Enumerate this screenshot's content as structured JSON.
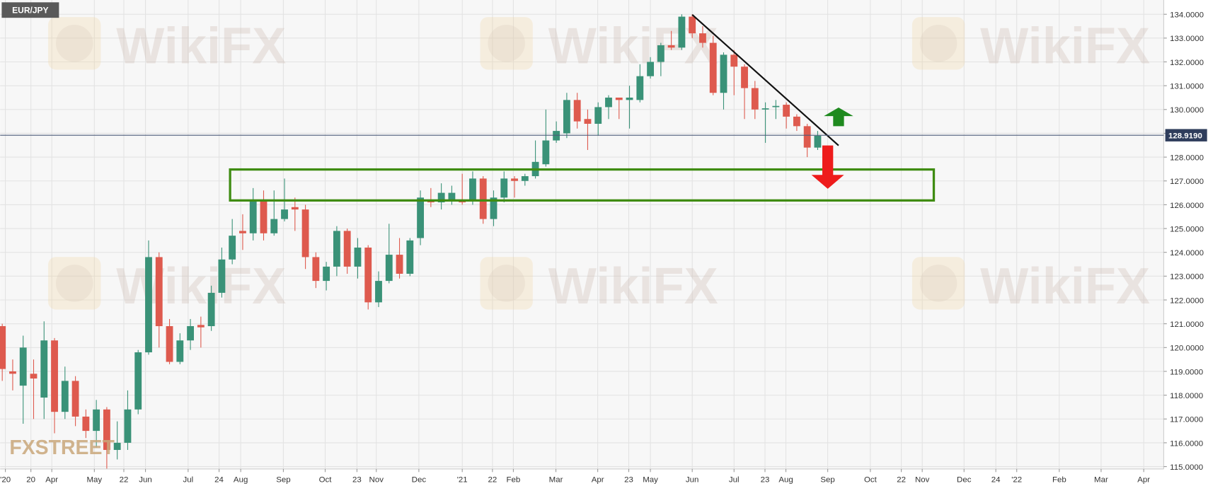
{
  "chart_data": {
    "type": "candlestick",
    "title": "EUR/JPY",
    "watermark": "WikiFX",
    "source": "FXSTREET",
    "x": [
      0,
      1,
      2,
      3,
      4,
      5,
      6,
      7,
      8,
      9,
      10,
      11,
      12,
      13,
      14,
      15,
      16,
      17,
      18,
      19,
      20,
      21,
      22,
      23,
      24,
      25,
      26,
      27,
      28,
      29,
      30,
      31,
      32,
      33,
      34,
      35,
      36,
      37,
      38,
      39,
      40,
      41,
      42,
      43,
      44,
      45,
      46,
      47,
      48,
      49,
      50,
      51,
      52,
      53,
      54,
      55,
      56,
      57,
      58,
      59,
      60,
      61,
      62,
      63,
      64,
      65,
      66,
      67,
      68,
      69,
      70,
      71,
      72,
      73,
      74,
      75,
      76,
      77,
      78
    ],
    "open": [
      120.9,
      119.0,
      118.4,
      118.9,
      117.9,
      120.3,
      117.3,
      118.6,
      117.1,
      116.5,
      117.4,
      115.7,
      116.0,
      117.4,
      119.8,
      123.8,
      120.9,
      119.4,
      120.3,
      120.95,
      120.9,
      122.3,
      123.7,
      124.9,
      124.8,
      126.2,
      124.8,
      125.4,
      125.9,
      125.8,
      123.8,
      122.8,
      123.4,
      124.9,
      123.4,
      124.2,
      121.9,
      122.8,
      123.9,
      123.1,
      124.6,
      126.2,
      126.1,
      126.2,
      126.2,
      126.2,
      127.1,
      125.4,
      126.3,
      127.1,
      127.0,
      127.2,
      127.7,
      128.7,
      129.0,
      130.4,
      129.6,
      129.4,
      130.1,
      130.5,
      130.4,
      130.4,
      131.4,
      132.0,
      132.7,
      132.6,
      133.9,
      133.2,
      132.8,
      130.7,
      132.3,
      131.8,
      130.9,
      130.0,
      130.1,
      130.2,
      129.7,
      129.3,
      128.4
    ],
    "high": [
      121.0,
      119.5,
      120.5,
      119.5,
      121.1,
      120.4,
      119.2,
      118.8,
      117.4,
      117.8,
      117.5,
      116.9,
      118.2,
      119.9,
      124.5,
      124.0,
      121.2,
      120.6,
      121.2,
      121.3,
      122.6,
      124.2,
      125.4,
      125.6,
      126.7,
      126.6,
      126.6,
      127.1,
      126.3,
      126.0,
      124.0,
      123.6,
      125.1,
      125.0,
      124.6,
      124.3,
      123.2,
      125.2,
      124.6,
      124.6,
      126.6,
      126.7,
      126.9,
      126.8,
      127.3,
      127.4,
      127.2,
      126.6,
      127.4,
      127.2,
      127.3,
      128.7,
      130.0,
      129.5,
      130.7,
      130.7,
      130.0,
      130.3,
      130.6,
      130.5,
      131.0,
      131.9,
      132.2,
      132.8,
      133.3,
      134.0,
      134.0,
      133.5,
      133.1,
      132.4,
      132.5,
      131.9,
      131.2,
      130.3,
      130.4,
      130.3,
      129.8,
      129.4,
      129.1
    ],
    "low": [
      118.6,
      118.2,
      116.8,
      117.0,
      117.0,
      116.4,
      117.0,
      116.7,
      116.2,
      115.8,
      114.9,
      115.3,
      115.7,
      117.2,
      119.7,
      120.0,
      119.3,
      119.3,
      119.9,
      120.0,
      120.7,
      122.1,
      123.5,
      124.1,
      124.5,
      124.5,
      124.7,
      125.3,
      124.9,
      123.3,
      122.5,
      122.4,
      123.0,
      123.1,
      122.9,
      121.6,
      121.7,
      122.7,
      122.9,
      123.0,
      124.3,
      125.9,
      125.8,
      126.0,
      126.0,
      126.0,
      125.2,
      125.1,
      126.1,
      126.3,
      126.8,
      127.1,
      127.6,
      128.6,
      128.8,
      129.2,
      128.3,
      128.9,
      129.6,
      129.6,
      129.2,
      130.3,
      131.3,
      131.4,
      132.5,
      132.5,
      133.0,
      132.6,
      130.6,
      130.0,
      130.6,
      129.6,
      129.6,
      128.6,
      129.6,
      129.2,
      129.1,
      128.0,
      128.3
    ],
    "close": [
      119.1,
      118.9,
      120.0,
      118.7,
      120.3,
      117.3,
      118.6,
      117.1,
      116.5,
      117.4,
      115.7,
      116.0,
      117.4,
      119.8,
      123.8,
      120.9,
      119.4,
      120.3,
      120.9,
      120.85,
      122.3,
      123.7,
      124.7,
      124.8,
      126.2,
      124.8,
      125.4,
      125.8,
      125.8,
      123.8,
      122.8,
      123.4,
      124.9,
      123.4,
      124.2,
      121.9,
      122.8,
      123.9,
      123.1,
      124.5,
      126.3,
      126.1,
      126.5,
      126.5,
      126.1,
      127.1,
      125.4,
      126.3,
      127.1,
      127.0,
      127.2,
      127.8,
      128.7,
      129.1,
      130.4,
      129.5,
      129.4,
      130.1,
      130.5,
      130.4,
      130.5,
      131.4,
      132.0,
      132.7,
      132.6,
      133.9,
      133.2,
      132.8,
      130.7,
      132.3,
      131.8,
      130.9,
      130.0,
      130.05,
      130.15,
      129.7,
      129.3,
      128.4,
      128.9
    ],
    "up_color": "#3a9278",
    "down_color": "#de5a4e",
    "last_price": {
      "value": 128.919,
      "label": "128.9190"
    },
    "xlim": [
      -0.2,
      111.1
    ],
    "xticks": [
      {
        "value": 0.3,
        "label": "'20"
      },
      {
        "value": 2.74,
        "label": "20"
      },
      {
        "value": 4.74,
        "label": "Apr"
      },
      {
        "value": 8.81,
        "label": "May"
      },
      {
        "value": 11.63,
        "label": "22"
      },
      {
        "value": 13.7,
        "label": "Jun"
      },
      {
        "value": 17.78,
        "label": "Jul"
      },
      {
        "value": 20.74,
        "label": "24"
      },
      {
        "value": 22.81,
        "label": "Aug"
      },
      {
        "value": 26.89,
        "label": "Sep"
      },
      {
        "value": 30.89,
        "label": "Oct"
      },
      {
        "value": 33.93,
        "label": "23"
      },
      {
        "value": 35.78,
        "label": "Nov"
      },
      {
        "value": 39.85,
        "label": "Dec"
      },
      {
        "value": 44.0,
        "label": "'21"
      },
      {
        "value": 46.89,
        "label": "22"
      },
      {
        "value": 48.89,
        "label": "Feb"
      },
      {
        "value": 52.96,
        "label": "Mar"
      },
      {
        "value": 56.96,
        "label": "Apr"
      },
      {
        "value": 59.93,
        "label": "23"
      },
      {
        "value": 62.0,
        "label": "May"
      },
      {
        "value": 66.0,
        "label": "Jun"
      },
      {
        "value": 70.0,
        "label": "Jul"
      },
      {
        "value": 72.96,
        "label": "23"
      },
      {
        "value": 74.96,
        "label": "Aug"
      },
      {
        "value": 78.96,
        "label": "Sep"
      },
      {
        "value": 83.04,
        "label": "Oct"
      },
      {
        "value": 86.0,
        "label": "22"
      },
      {
        "value": 88.0,
        "label": "Nov"
      },
      {
        "value": 92.0,
        "label": "Dec"
      },
      {
        "value": 95.04,
        "label": "24"
      },
      {
        "value": 97.04,
        "label": "'22"
      },
      {
        "value": 101.11,
        "label": "Feb"
      },
      {
        "value": 105.11,
        "label": "Mar"
      },
      {
        "value": 109.19,
        "label": "Apr"
      }
    ],
    "ylim": [
      114.9,
      134.6
    ],
    "yticks": [
      {
        "value": 115,
        "label": "115.0000"
      },
      {
        "value": 116,
        "label": "116.0000"
      },
      {
        "value": 117,
        "label": "117.0000"
      },
      {
        "value": 118,
        "label": "118.0000"
      },
      {
        "value": 119,
        "label": "119.0000"
      },
      {
        "value": 120,
        "label": "120.0000"
      },
      {
        "value": 121,
        "label": "121.0000"
      },
      {
        "value": 122,
        "label": "122.0000"
      },
      {
        "value": 123,
        "label": "123.0000"
      },
      {
        "value": 124,
        "label": "124.0000"
      },
      {
        "value": 125,
        "label": "125.0000"
      },
      {
        "value": 126,
        "label": "126.0000"
      },
      {
        "value": 127,
        "label": "127.0000"
      },
      {
        "value": 128,
        "label": "128.0000"
      },
      {
        "value": 129,
        "label": "129.0000"
      },
      {
        "value": 130,
        "label": "130.0000"
      },
      {
        "value": 131,
        "label": "131.0000"
      },
      {
        "value": 132,
        "label": "132.0000"
      },
      {
        "value": 133,
        "label": "133.0000"
      },
      {
        "value": 134,
        "label": "134.0000"
      }
    ],
    "grid": true
  }
}
